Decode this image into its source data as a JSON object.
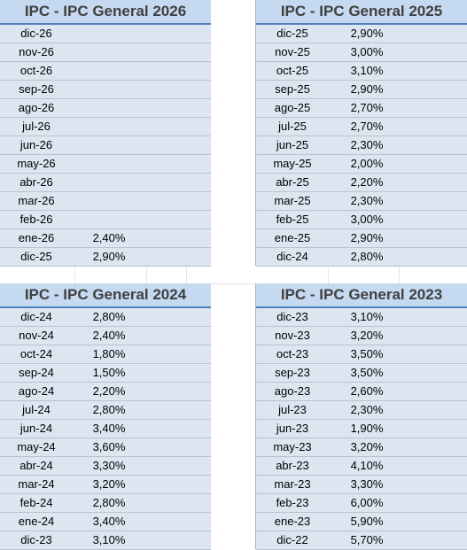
{
  "tables": [
    {
      "title": "IPC - IPC General 2026",
      "rows": [
        {
          "month": "dic-26",
          "value": ""
        },
        {
          "month": "nov-26",
          "value": ""
        },
        {
          "month": "oct-26",
          "value": ""
        },
        {
          "month": "sep-26",
          "value": ""
        },
        {
          "month": "ago-26",
          "value": ""
        },
        {
          "month": "jul-26",
          "value": ""
        },
        {
          "month": "jun-26",
          "value": ""
        },
        {
          "month": "may-26",
          "value": ""
        },
        {
          "month": "abr-26",
          "value": ""
        },
        {
          "month": "mar-26",
          "value": ""
        },
        {
          "month": "feb-26",
          "value": ""
        },
        {
          "month": "ene-26",
          "value": "2,40%"
        },
        {
          "month": "dic-25",
          "value": "2,90%"
        }
      ]
    },
    {
      "title": "IPC - IPC General 2025",
      "rows": [
        {
          "month": "dic-25",
          "value": "2,90%"
        },
        {
          "month": "nov-25",
          "value": "3,00%"
        },
        {
          "month": "oct-25",
          "value": "3,10%"
        },
        {
          "month": "sep-25",
          "value": "2,90%"
        },
        {
          "month": "ago-25",
          "value": "2,70%"
        },
        {
          "month": "jul-25",
          "value": "2,70%"
        },
        {
          "month": "jun-25",
          "value": "2,30%"
        },
        {
          "month": "may-25",
          "value": "2,00%"
        },
        {
          "month": "abr-25",
          "value": "2,20%"
        },
        {
          "month": "mar-25",
          "value": "2,30%"
        },
        {
          "month": "feb-25",
          "value": "3,00%"
        },
        {
          "month": "ene-25",
          "value": "2,90%"
        },
        {
          "month": "dic-24",
          "value": "2,80%"
        }
      ]
    },
    {
      "title": "IPC - IPC General 2024",
      "rows": [
        {
          "month": "dic-24",
          "value": "2,80%"
        },
        {
          "month": "nov-24",
          "value": "2,40%"
        },
        {
          "month": "oct-24",
          "value": "1,80%"
        },
        {
          "month": "sep-24",
          "value": "1,50%"
        },
        {
          "month": "ago-24",
          "value": "2,20%"
        },
        {
          "month": "jul-24",
          "value": "2,80%"
        },
        {
          "month": "jun-24",
          "value": "3,40%"
        },
        {
          "month": "may-24",
          "value": "3,60%"
        },
        {
          "month": "abr-24",
          "value": "3,30%"
        },
        {
          "month": "mar-24",
          "value": "3,20%"
        },
        {
          "month": "feb-24",
          "value": "2,80%"
        },
        {
          "month": "ene-24",
          "value": "3,40%"
        },
        {
          "month": "dic-23",
          "value": "3,10%"
        }
      ]
    },
    {
      "title": "IPC - IPC General 2023",
      "rows": [
        {
          "month": "dic-23",
          "value": "3,10%"
        },
        {
          "month": "nov-23",
          "value": "3,20%"
        },
        {
          "month": "oct-23",
          "value": "3,50%"
        },
        {
          "month": "sep-23",
          "value": "3,50%"
        },
        {
          "month": "ago-23",
          "value": "2,60%"
        },
        {
          "month": "jul-23",
          "value": "2,30%"
        },
        {
          "month": "jun-23",
          "value": "1,90%"
        },
        {
          "month": "may-23",
          "value": "3,20%"
        },
        {
          "month": "abr-23",
          "value": "4,10%"
        },
        {
          "month": "mar-23",
          "value": "3,30%"
        },
        {
          "month": "feb-23",
          "value": "6,00%"
        },
        {
          "month": "ene-23",
          "value": "5,90%"
        },
        {
          "month": "dic-22",
          "value": "5,70%"
        }
      ]
    }
  ],
  "colors": {
    "header_fill": "#c5d9f1",
    "header_border": "#4f81bd",
    "row_fill": "#dce6f1"
  }
}
